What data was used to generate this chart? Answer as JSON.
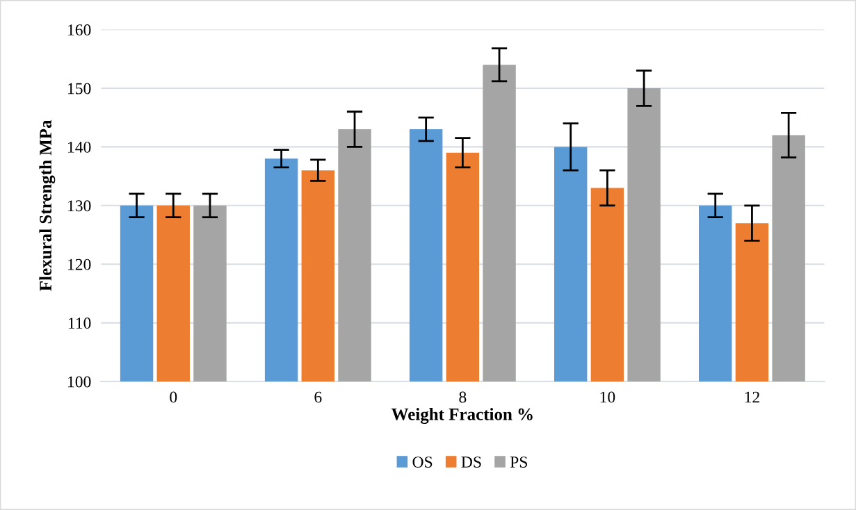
{
  "chart_data": {
    "type": "bar",
    "xlabel": "Weight Fraction %",
    "ylabel": "Flexural Strength MPa",
    "categories": [
      "0",
      "6",
      "8",
      "10",
      "12"
    ],
    "series": [
      {
        "name": "OS",
        "color": "#5b9bd5",
        "values": [
          130,
          138,
          143,
          140,
          130
        ],
        "errors": [
          2,
          1.5,
          2,
          4,
          2
        ]
      },
      {
        "name": "DS",
        "color": "#ed7d31",
        "values": [
          130,
          136,
          139,
          133,
          127
        ],
        "errors": [
          2,
          1.8,
          2.5,
          3,
          3
        ]
      },
      {
        "name": "PS",
        "color": "#a5a5a5",
        "values": [
          130,
          143,
          154,
          150,
          142
        ],
        "errors": [
          2,
          3,
          2.8,
          3,
          3.8
        ]
      }
    ],
    "ylim": [
      100,
      160
    ],
    "yticks": [
      100,
      110,
      120,
      130,
      140,
      150,
      160
    ],
    "grid": "y",
    "legend": "bottom"
  }
}
